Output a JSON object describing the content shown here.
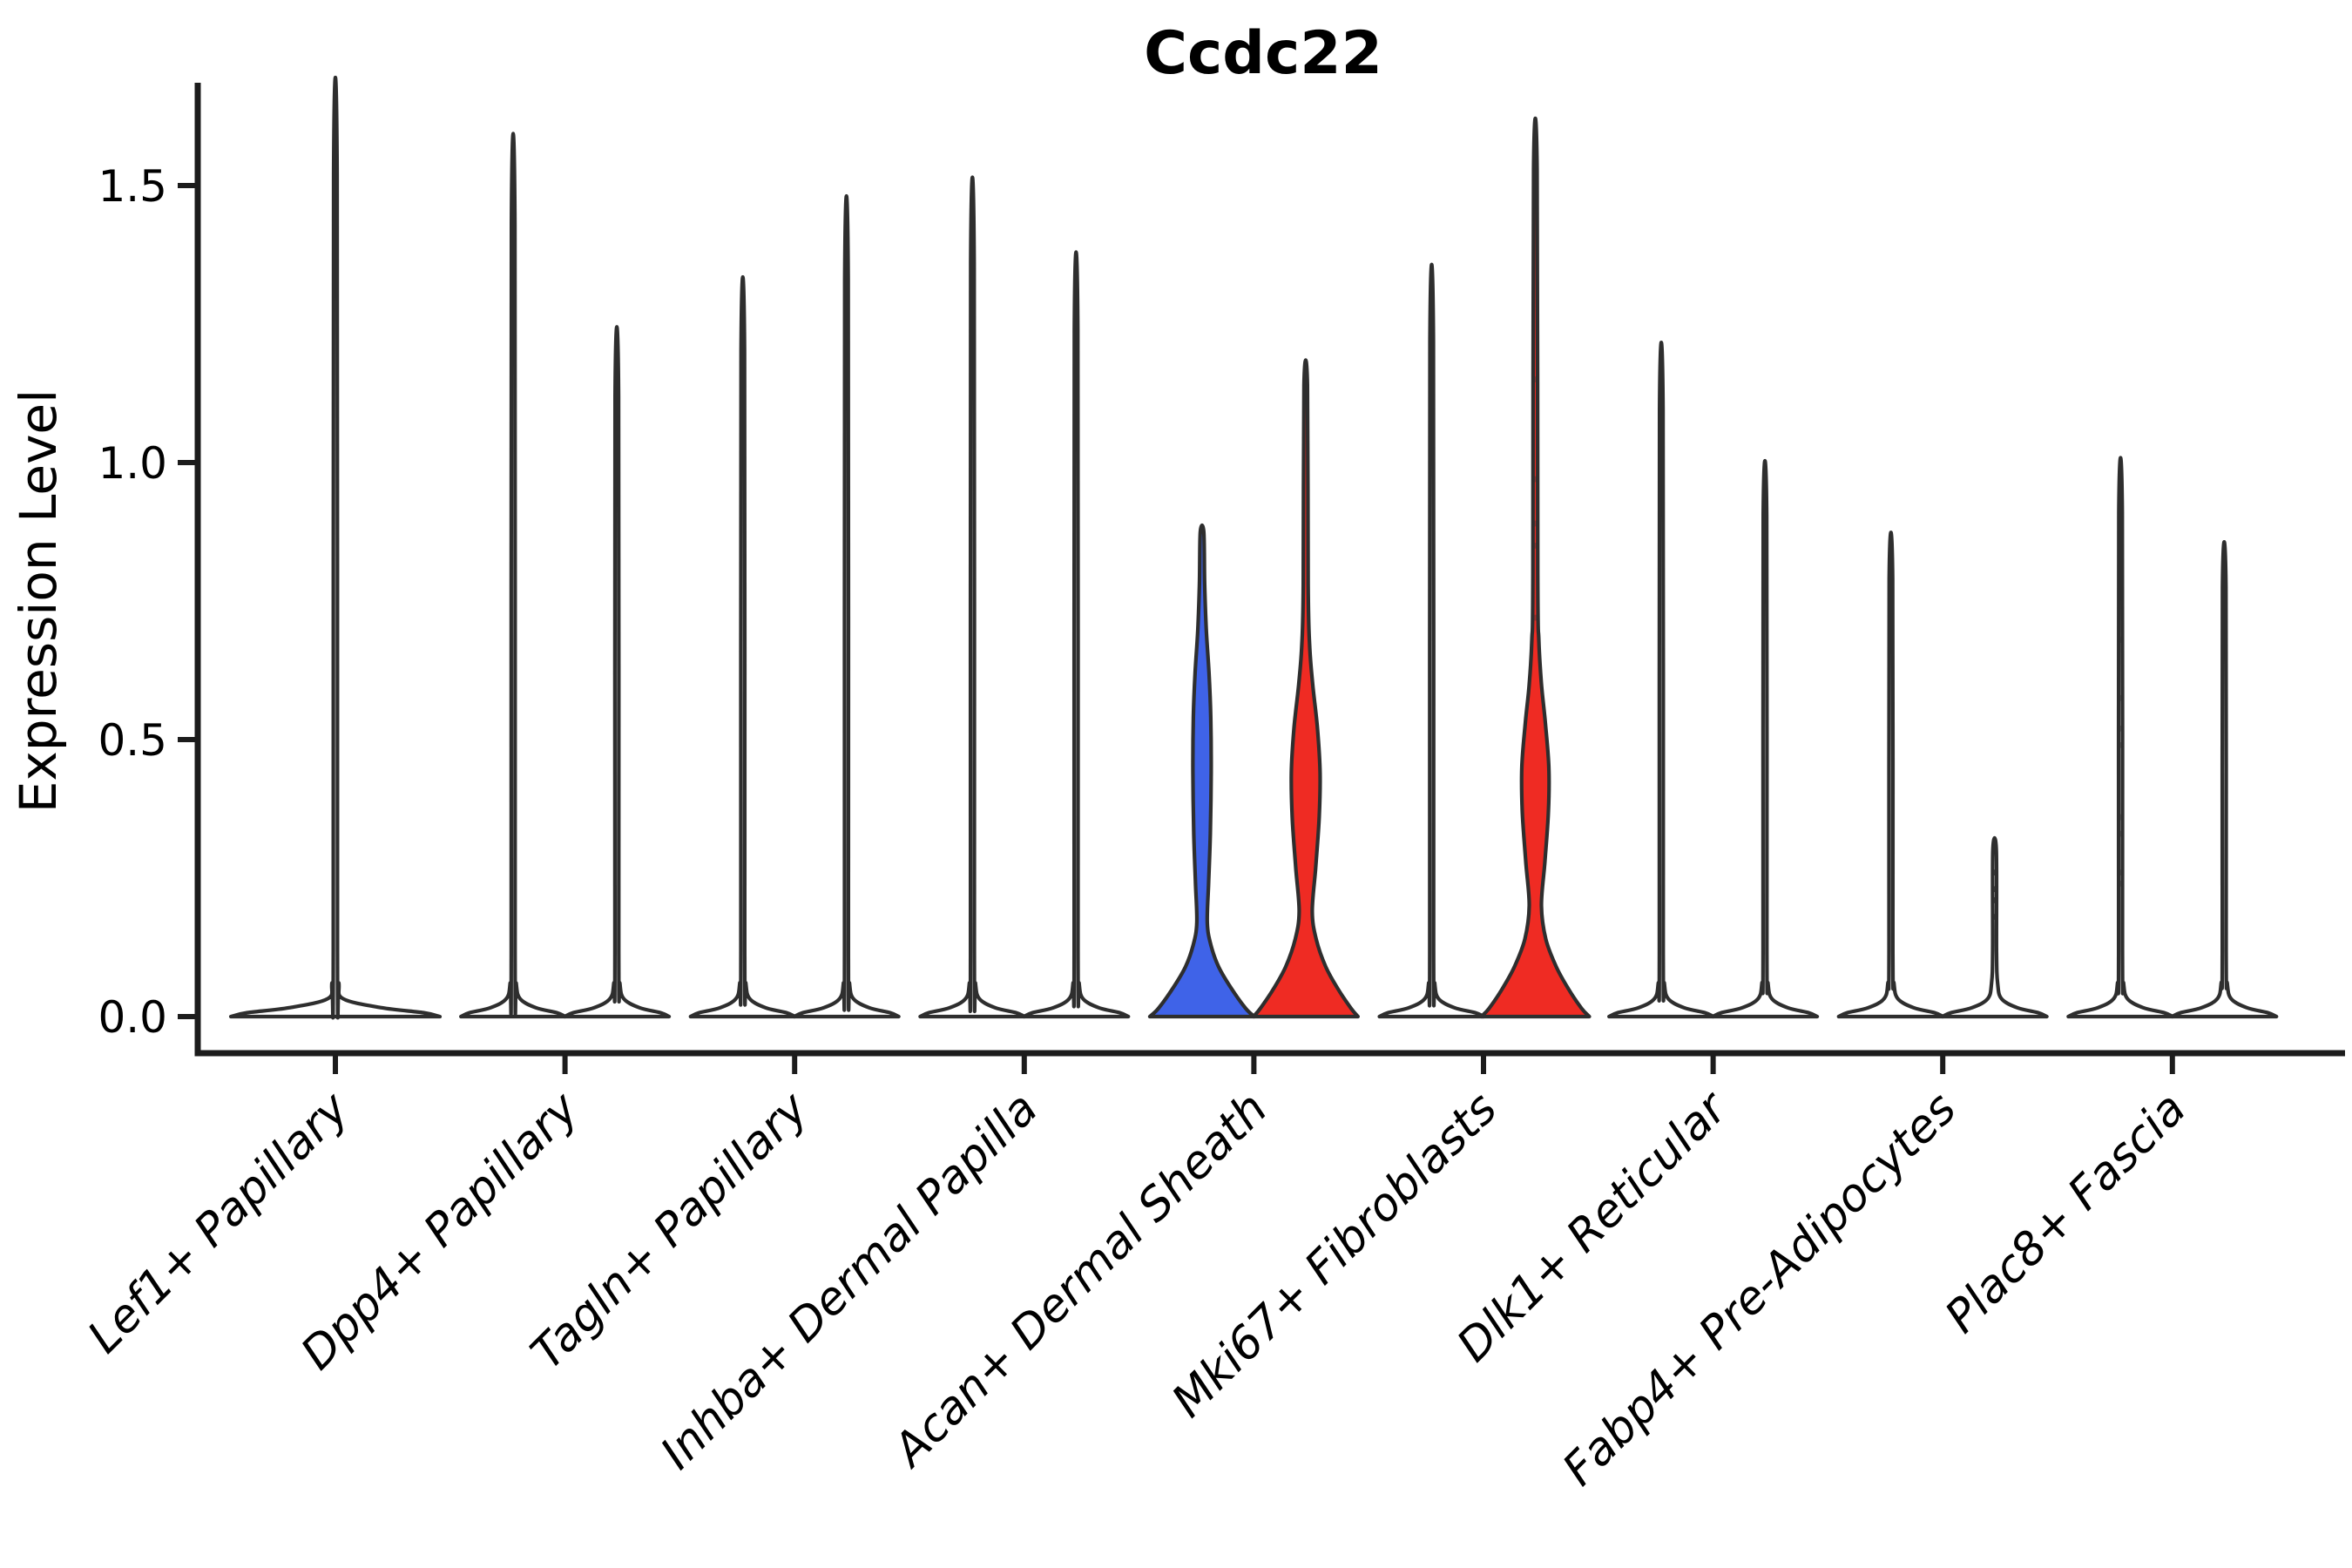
{
  "chart_data": {
    "type": "violin",
    "title": "Ccdc22",
    "ylabel": "Expression Level",
    "xlabel": "",
    "ylim": [
      0,
      1.62
    ],
    "grid": false,
    "legend": "none",
    "y_ticks": [
      {
        "v": 0.0,
        "label": "0.0"
      },
      {
        "v": 0.5,
        "label": "0.5"
      },
      {
        "v": 1.0,
        "label": "1.0"
      },
      {
        "v": 1.5,
        "label": "1.5"
      }
    ],
    "categories": [
      "Lef1+ Papillary",
      "Dpp4+ Papillary",
      "Tagln+ Papillary",
      "Inhba+ Dermal Papilla",
      "Acan+ Dermal Sheath",
      "Mki67+ Fibroblasts",
      "Dlk1+ Reticular",
      "Fabp4+ Pre-Adipocytes",
      "Plac8+ Fascia"
    ],
    "colors": {
      "blue_fill": "#3f63e8",
      "red_fill": "#ef2b23",
      "white_fill": "#ffffff",
      "outline": "#2e2e2e",
      "axis": "#1c1c1c",
      "text": "#000000"
    },
    "violins": [
      {
        "category_index": 0,
        "category": "Lef1+ Papillary",
        "side": "full",
        "fill": "#ffffff",
        "max_expression": 1.52,
        "profile": [
          [
            0,
            120
          ],
          [
            0.007,
            101
          ],
          [
            0.016,
            53
          ],
          [
            0.032,
            9
          ],
          [
            0.06,
            4
          ],
          [
            0.12,
            2.4
          ],
          [
            1.52,
            2
          ]
        ]
      },
      {
        "category_index": 1,
        "category": "Dpp4+ Papillary",
        "side": "left",
        "fill": "#ffffff",
        "max_expression": 1.43,
        "profile": [
          [
            0,
            60
          ],
          [
            0.007,
            50
          ],
          [
            0.016,
            26
          ],
          [
            0.032,
            8
          ],
          [
            0.06,
            3.5
          ],
          [
            0.12,
            2.2
          ],
          [
            1.43,
            2
          ]
        ]
      },
      {
        "category_index": 1,
        "category": "Dpp4+ Papillary",
        "side": "right",
        "fill": "#ffffff",
        "max_expression": 1.12,
        "profile": [
          [
            0,
            60
          ],
          [
            0.007,
            50
          ],
          [
            0.016,
            26
          ],
          [
            0.032,
            8
          ],
          [
            0.06,
            3.5
          ],
          [
            0.12,
            2.2
          ],
          [
            1.12,
            2
          ]
        ]
      },
      {
        "category_index": 2,
        "category": "Tagln+ Papillary",
        "side": "left",
        "fill": "#ffffff",
        "max_expression": 1.2,
        "profile": [
          [
            0,
            60
          ],
          [
            0.007,
            50
          ],
          [
            0.016,
            26
          ],
          [
            0.032,
            8
          ],
          [
            0.06,
            3.5
          ],
          [
            0.12,
            2.2
          ],
          [
            1.2,
            2
          ]
        ]
      },
      {
        "category_index": 2,
        "category": "Tagln+ Papillary",
        "side": "right",
        "fill": "#ffffff",
        "max_expression": 1.33,
        "profile": [
          [
            0,
            60
          ],
          [
            0.007,
            50
          ],
          [
            0.016,
            26
          ],
          [
            0.032,
            8
          ],
          [
            0.06,
            3.5
          ],
          [
            0.12,
            2.2
          ],
          [
            1.33,
            2
          ]
        ]
      },
      {
        "category_index": 3,
        "category": "Inhba+ Dermal Papilla",
        "side": "left",
        "fill": "#ffffff",
        "max_expression": 1.36,
        "profile": [
          [
            0,
            60
          ],
          [
            0.007,
            50
          ],
          [
            0.016,
            26
          ],
          [
            0.032,
            8
          ],
          [
            0.06,
            3.5
          ],
          [
            0.12,
            2.2
          ],
          [
            1.36,
            2
          ]
        ]
      },
      {
        "category_index": 3,
        "category": "Inhba+ Dermal Papilla",
        "side": "right",
        "fill": "#ffffff",
        "max_expression": 1.24,
        "profile": [
          [
            0,
            60
          ],
          [
            0.007,
            50
          ],
          [
            0.016,
            26
          ],
          [
            0.032,
            8
          ],
          [
            0.06,
            3.5
          ],
          [
            0.12,
            2.2
          ],
          [
            1.24,
            2
          ]
        ]
      },
      {
        "category_index": 4,
        "category": "Acan+ Dermal Sheath",
        "side": "left",
        "fill": "#3f63e8",
        "max_expression": 0.875,
        "profile": [
          [
            0,
            60
          ],
          [
            0.015,
            50
          ],
          [
            0.05,
            34
          ],
          [
            0.09,
            19
          ],
          [
            0.13,
            10
          ],
          [
            0.17,
            6
          ],
          [
            0.24,
            7.5
          ],
          [
            0.33,
            9.5
          ],
          [
            0.44,
            10.5
          ],
          [
            0.54,
            10
          ],
          [
            0.62,
            8
          ],
          [
            0.7,
            4.8
          ],
          [
            0.78,
            3
          ],
          [
            0.875,
            2
          ]
        ]
      },
      {
        "category_index": 4,
        "category": "Acan+ Dermal Sheath",
        "side": "right",
        "fill": "#ef2b23",
        "max_expression": 1.14,
        "profile": [
          [
            0,
            60
          ],
          [
            0.015,
            52
          ],
          [
            0.05,
            37
          ],
          [
            0.09,
            23
          ],
          [
            0.14,
            12
          ],
          [
            0.19,
            7.5
          ],
          [
            0.27,
            11.5
          ],
          [
            0.36,
            15.5
          ],
          [
            0.44,
            16.5
          ],
          [
            0.52,
            13.5
          ],
          [
            0.6,
            8
          ],
          [
            0.67,
            4.5
          ],
          [
            0.78,
            2.8
          ],
          [
            1.14,
            2
          ]
        ]
      },
      {
        "category_index": 5,
        "category": "Mki67+ Fibroblasts",
        "side": "left",
        "fill": "#ffffff",
        "max_expression": 1.22,
        "profile": [
          [
            0,
            60
          ],
          [
            0.007,
            50
          ],
          [
            0.016,
            26
          ],
          [
            0.032,
            8
          ],
          [
            0.06,
            3.5
          ],
          [
            0.12,
            2.2
          ],
          [
            1.22,
            2
          ]
        ]
      },
      {
        "category_index": 5,
        "category": "Mki67+ Fibroblasts",
        "side": "right",
        "fill": "#ef2b23",
        "max_expression": 1.53,
        "profile": [
          [
            0,
            62
          ],
          [
            0.015,
            53
          ],
          [
            0.05,
            38
          ],
          [
            0.09,
            24
          ],
          [
            0.14,
            12
          ],
          [
            0.2,
            7
          ],
          [
            0.28,
            11
          ],
          [
            0.37,
            15
          ],
          [
            0.45,
            15.5
          ],
          [
            0.53,
            11.5
          ],
          [
            0.6,
            7
          ],
          [
            0.68,
            4
          ],
          [
            0.8,
            2.8
          ],
          [
            1.53,
            2
          ]
        ],
        "dots": [
          1.15,
          0.97,
          0.89,
          0.85,
          0.72
        ],
        "dots_opacity": 0.35
      },
      {
        "category_index": 6,
        "category": "Dlk1+ Reticular",
        "side": "left",
        "fill": "#ffffff",
        "max_expression": 1.095,
        "profile": [
          [
            0,
            60
          ],
          [
            0.007,
            50
          ],
          [
            0.016,
            26
          ],
          [
            0.032,
            8
          ],
          [
            0.06,
            3.5
          ],
          [
            0.12,
            2.2
          ],
          [
            1.095,
            2
          ]
        ]
      },
      {
        "category_index": 6,
        "category": "Dlk1+ Reticular",
        "side": "right",
        "fill": "#ffffff",
        "max_expression": 0.905,
        "profile": [
          [
            0,
            60
          ],
          [
            0.007,
            50
          ],
          [
            0.016,
            26
          ],
          [
            0.032,
            8
          ],
          [
            0.06,
            3.5
          ],
          [
            0.12,
            2.2
          ],
          [
            0.905,
            2
          ]
        ]
      },
      {
        "category_index": 7,
        "category": "Fabp4+ Pre-Adipocytes",
        "side": "left",
        "fill": "#ffffff",
        "max_expression": 0.79,
        "profile": [
          [
            0,
            60
          ],
          [
            0.007,
            50
          ],
          [
            0.016,
            26
          ],
          [
            0.032,
            8
          ],
          [
            0.06,
            3.5
          ],
          [
            0.12,
            2.2
          ],
          [
            0.79,
            2
          ]
        ]
      },
      {
        "category_index": 7,
        "category": "Fabp4+ Pre-Adipocytes",
        "side": "right",
        "fill": "#ffffff",
        "max_expression": 0.3,
        "profile": [
          [
            0,
            60
          ],
          [
            0.007,
            50
          ],
          [
            0.016,
            26
          ],
          [
            0.032,
            8
          ],
          [
            0.06,
            3.5
          ],
          [
            0.12,
            2.2
          ],
          [
            0.3,
            2
          ]
        ],
        "dots": [
          0.3,
          0.26,
          0.23,
          0.21,
          0.18
        ],
        "dots_opacity": 0.85
      },
      {
        "category_index": 8,
        "category": "Plac8+ Fascia",
        "side": "left",
        "fill": "#ffffff",
        "max_expression": 0.91,
        "profile": [
          [
            0,
            60
          ],
          [
            0.007,
            50
          ],
          [
            0.016,
            26
          ],
          [
            0.032,
            8
          ],
          [
            0.06,
            3.5
          ],
          [
            0.12,
            2.2
          ],
          [
            0.91,
            2
          ]
        ],
        "dots": [
          0.68,
          0.575,
          0.52,
          0.49,
          0.36,
          0.33,
          0.26,
          0.24
        ],
        "dots_opacity": 0.45
      },
      {
        "category_index": 8,
        "category": "Plac8+ Fascia",
        "side": "right",
        "fill": "#ffffff",
        "max_expression": 0.775,
        "profile": [
          [
            0,
            60
          ],
          [
            0.007,
            50
          ],
          [
            0.016,
            26
          ],
          [
            0.032,
            8
          ],
          [
            0.06,
            3.5
          ],
          [
            0.12,
            2.2
          ],
          [
            0.775,
            2
          ]
        ]
      }
    ]
  }
}
